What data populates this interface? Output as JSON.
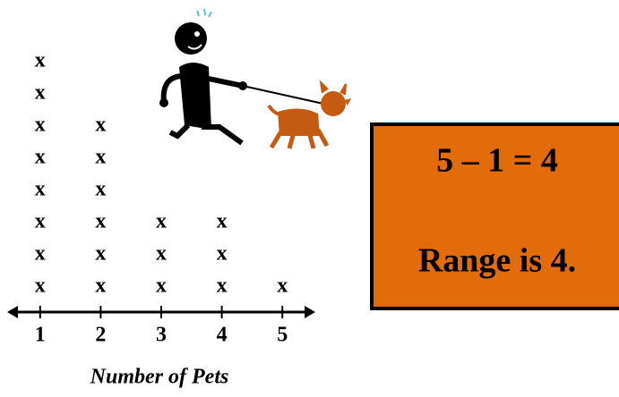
{
  "chart_data": {
    "type": "dot",
    "marker": "x",
    "x": [
      1,
      2,
      3,
      4,
      5
    ],
    "values": [
      8,
      6,
      3,
      3,
      1
    ],
    "xlim": [
      0.5,
      5.5
    ],
    "xticks": [
      1,
      2,
      3,
      4,
      5
    ],
    "xlabel": "Number of Pets",
    "annotations": [
      "5 – 1 = 4",
      "Range is 4."
    ]
  }
}
